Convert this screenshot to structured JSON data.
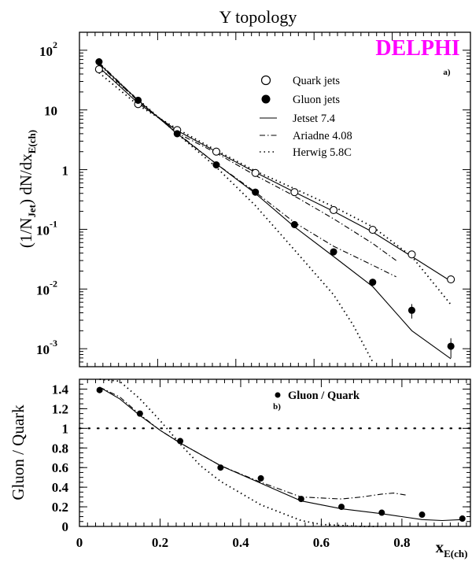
{
  "figure": {
    "title": "Y topology",
    "brand": "DELPHI",
    "brand_color": "#ff00ff",
    "panel_a_label": "a)",
    "panel_b_label": "b)",
    "xlabel_main": "x",
    "xlabel_sub": "E(ch)",
    "top_ylabel": {
      "pre": "(1/N",
      "sub1": "Jet",
      "mid": ") dN/dx",
      "sub2": "E(ch)"
    },
    "bottom_ylabel": "Gluon / Quark"
  },
  "chart_data": [
    {
      "type": "scatter",
      "panel": "top",
      "yscale": "log",
      "xlim": [
        0,
        1
      ],
      "ylim": [
        0.0005,
        200
      ],
      "grid": false,
      "legend_position": "top-right",
      "yticks": [
        {
          "value": 100,
          "base": "10",
          "exp": "2"
        },
        {
          "value": 10,
          "base": "10",
          "exp": ""
        },
        {
          "value": 1,
          "base": "1",
          "exp": ""
        },
        {
          "value": 0.1,
          "base": "10",
          "exp": "-1"
        },
        {
          "value": 0.01,
          "base": "10",
          "exp": "-2"
        },
        {
          "value": 0.001,
          "base": "10",
          "exp": "-3"
        }
      ],
      "series": [
        {
          "name": "Quark jets",
          "kind": "points",
          "marker": "open-circle",
          "x": [
            0.05,
            0.15,
            0.25,
            0.35,
            0.45,
            0.55,
            0.65,
            0.75,
            0.85,
            0.95
          ],
          "y": [
            48,
            12.5,
            4.6,
            2.0,
            0.88,
            0.42,
            0.21,
            0.098,
            0.038,
            0.0145
          ],
          "yerr": [
            0,
            0,
            0,
            0,
            0,
            0,
            0,
            0,
            0,
            0
          ]
        },
        {
          "name": "Gluon jets",
          "kind": "points",
          "marker": "filled-circle",
          "x": [
            0.05,
            0.15,
            0.25,
            0.35,
            0.45,
            0.55,
            0.65,
            0.75,
            0.85,
            0.95
          ],
          "y": [
            64,
            14.5,
            4.0,
            1.2,
            0.42,
            0.12,
            0.042,
            0.013,
            0.0044,
            0.0011
          ],
          "yerr": [
            0,
            0,
            0,
            0,
            0,
            0,
            0,
            0,
            0.0012,
            0.0004
          ]
        },
        {
          "name": "Jetset 7.4",
          "kind": "line",
          "dash": "solid",
          "x": [
            0.05,
            0.15,
            0.25,
            0.35,
            0.45,
            0.55,
            0.65,
            0.75,
            0.85,
            0.95
          ],
          "y": [
            52,
            13,
            4.5,
            2.0,
            0.9,
            0.42,
            0.2,
            0.09,
            0.035,
            0.0135
          ]
        },
        {
          "name": "Jetset 7.4",
          "kind": "line",
          "dash": "solid",
          "x": [
            0.05,
            0.15,
            0.25,
            0.35,
            0.45,
            0.55,
            0.65,
            0.75,
            0.85,
            0.95
          ],
          "y": [
            60,
            14.5,
            4.0,
            1.25,
            0.4,
            0.11,
            0.035,
            0.011,
            0.002,
            0.00068
          ]
        },
        {
          "name": "Ariadne 4.08",
          "kind": "line",
          "dash": "dashdot",
          "x": [
            0.05,
            0.15,
            0.25,
            0.35,
            0.45,
            0.55,
            0.65,
            0.75,
            0.81
          ],
          "y": [
            62,
            14.5,
            4.1,
            1.9,
            0.8,
            0.36,
            0.15,
            0.058,
            0.03
          ]
        },
        {
          "name": "Ariadne 4.08",
          "kind": "line",
          "dash": "dashdot",
          "x": [
            0.05,
            0.15,
            0.25,
            0.35,
            0.45,
            0.55,
            0.65,
            0.75,
            0.81
          ],
          "y": [
            58,
            14,
            4.1,
            1.25,
            0.42,
            0.13,
            0.052,
            0.025,
            0.016
          ]
        },
        {
          "name": "Herwig 5.8C",
          "kind": "line",
          "dash": "dotted",
          "x": [
            0.05,
            0.15,
            0.25,
            0.35,
            0.45,
            0.55,
            0.65,
            0.75,
            0.85,
            0.95
          ],
          "y": [
            42,
            12,
            4.8,
            2.1,
            0.95,
            0.48,
            0.24,
            0.11,
            0.035,
            0.0055
          ]
        },
        {
          "name": "Herwig 5.8C",
          "kind": "line",
          "dash": "dotted",
          "x": [
            0.05,
            0.15,
            0.25,
            0.35,
            0.45,
            0.55,
            0.65,
            0.7,
            0.75
          ],
          "y": [
            50,
            15,
            4.0,
            1.1,
            0.25,
            0.045,
            0.008,
            0.0025,
            0.0006
          ]
        }
      ]
    },
    {
      "type": "scatter",
      "panel": "bottom",
      "xlim": [
        0,
        0.97
      ],
      "ylim": [
        0,
        1.5
      ],
      "grid": false,
      "legend_position": "top-right",
      "xticks": [
        "0",
        "0.2",
        "0.4",
        "0.6",
        "0.8"
      ],
      "yticks": [
        "0",
        "0.2",
        "0.4",
        "0.6",
        "0.8",
        "1",
        "1.2",
        "1.4"
      ],
      "reference_line": 1,
      "series": [
        {
          "name": "Gluon / Quark",
          "kind": "points",
          "marker": "filled-circle",
          "x": [
            0.05,
            0.15,
            0.25,
            0.35,
            0.45,
            0.55,
            0.65,
            0.75,
            0.85,
            0.95
          ],
          "y": [
            1.39,
            1.15,
            0.87,
            0.6,
            0.49,
            0.28,
            0.2,
            0.14,
            0.12,
            0.08
          ]
        },
        {
          "kind": "line",
          "dash": "solid",
          "x": [
            0.05,
            0.1,
            0.15,
            0.2,
            0.25,
            0.35,
            0.45,
            0.55,
            0.65,
            0.75,
            0.85,
            0.9,
            0.95
          ],
          "y": [
            1.42,
            1.3,
            1.13,
            0.98,
            0.85,
            0.62,
            0.44,
            0.26,
            0.18,
            0.13,
            0.07,
            0.06,
            0.07
          ]
        },
        {
          "kind": "line",
          "dash": "dashdot",
          "x": [
            0.05,
            0.1,
            0.15,
            0.2,
            0.25,
            0.35,
            0.45,
            0.55,
            0.65,
            0.7,
            0.75,
            0.78,
            0.81
          ],
          "y": [
            1.42,
            1.32,
            1.14,
            0.98,
            0.85,
            0.62,
            0.45,
            0.3,
            0.28,
            0.3,
            0.33,
            0.34,
            0.32
          ]
        },
        {
          "kind": "line",
          "dash": "dotted",
          "x": [
            0.05,
            0.1,
            0.15,
            0.2,
            0.25,
            0.3,
            0.35,
            0.45,
            0.55,
            0.6,
            0.65,
            0.7,
            0.75
          ],
          "y": [
            1.6,
            1.48,
            1.3,
            1.08,
            0.84,
            0.62,
            0.46,
            0.22,
            0.06,
            0.02,
            0.01,
            0.0,
            0.0
          ]
        }
      ]
    }
  ]
}
